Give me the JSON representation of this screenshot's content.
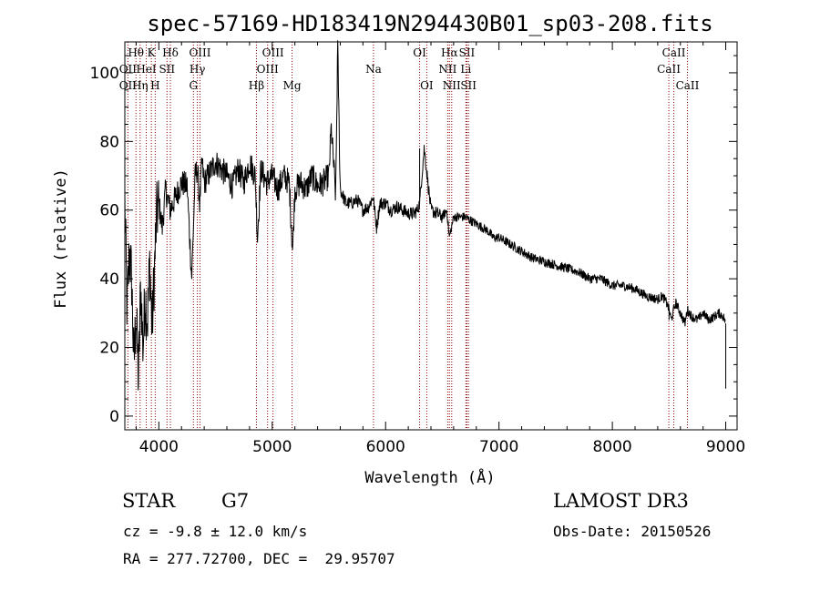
{
  "chart_data": {
    "type": "line",
    "title": "spec-57169-HD183419N294430B01_sp03-208.fits",
    "xlabel": "Wavelength (Å)",
    "ylabel": "Flux (relative)",
    "xlim": [
      3700,
      9100
    ],
    "ylim": [
      -4,
      109
    ],
    "x_ticks": [
      4000,
      5000,
      6000,
      7000,
      8000,
      9000
    ],
    "y_ticks": [
      0,
      20,
      40,
      60,
      80,
      100
    ],
    "grid": false,
    "series": [
      {
        "name": "flux",
        "x": [
          3700,
          3720,
          3740,
          3760,
          3780,
          3800,
          3820,
          3840,
          3860,
          3880,
          3900,
          3920,
          3940,
          3960,
          3980,
          4000,
          4030,
          4060,
          4100,
          4150,
          4200,
          4250,
          4290,
          4320,
          4340,
          4360,
          4380,
          4400,
          4450,
          4500,
          4550,
          4600,
          4650,
          4700,
          4750,
          4800,
          4850,
          4870,
          4900,
          4950,
          5000,
          5050,
          5100,
          5150,
          5180,
          5200,
          5250,
          5300,
          5350,
          5400,
          5450,
          5500,
          5520,
          5560,
          5577,
          5600,
          5650,
          5700,
          5750,
          5800,
          5850,
          5890,
          5920,
          5950,
          6000,
          6050,
          6100,
          6150,
          6200,
          6250,
          6280,
          6300,
          6340,
          6400,
          6450,
          6500,
          6540,
          6563,
          6600,
          6650,
          6700,
          6750,
          6800,
          6850,
          6900,
          6950,
          7000,
          7100,
          7200,
          7300,
          7400,
          7500,
          7600,
          7700,
          7800,
          7900,
          8000,
          8100,
          8200,
          8300,
          8400,
          8440,
          8480,
          8500,
          8520,
          8542,
          8560,
          8600,
          8640,
          8662,
          8700,
          8750,
          8800,
          8850,
          8900,
          8940,
          8980,
          9000
        ],
        "y": [
          62,
          30,
          48,
          40,
          15,
          30,
          10,
          38,
          20,
          35,
          28,
          45,
          25,
          42,
          58,
          62,
          55,
          66,
          60,
          64,
          68,
          67,
          40,
          70,
          72,
          62,
          74,
          68,
          71,
          74,
          72,
          70,
          67,
          72,
          68,
          74,
          70,
          52,
          72,
          68,
          70,
          66,
          70,
          68,
          48,
          66,
          68,
          66,
          70,
          67,
          68,
          70,
          84,
          64,
          108,
          66,
          62,
          62,
          63,
          60,
          61,
          64,
          55,
          62,
          62,
          60,
          61,
          60,
          59,
          59,
          60,
          62,
          78,
          60,
          59,
          58,
          60,
          52,
          58,
          58,
          58,
          57,
          56,
          55,
          54,
          52,
          52,
          50,
          48,
          46,
          45,
          44,
          43,
          42,
          40,
          40,
          38,
          38,
          37,
          35,
          34,
          35,
          33,
          31,
          28,
          31,
          33,
          30,
          27,
          31,
          29,
          28,
          30,
          28,
          29,
          30,
          29,
          27
        ]
      }
    ],
    "line_annotations": [
      {
        "label": "Hθ",
        "x": 3798,
        "row": 0
      },
      {
        "label": "OII",
        "x": 3727,
        "row": 1
      },
      {
        "label": "OII",
        "x": 3727,
        "row": 2
      },
      {
        "label": "K",
        "x": 3934,
        "row": 0
      },
      {
        "label": "HeI",
        "x": 3889,
        "row": 1
      },
      {
        "label": "Hη",
        "x": 3835,
        "row": 2
      },
      {
        "label": "Hδ",
        "x": 4102,
        "row": 0
      },
      {
        "label": "SII",
        "x": 4072,
        "row": 1
      },
      {
        "label": "H",
        "x": 3968,
        "row": 2
      },
      {
        "label": "OIII",
        "x": 4363,
        "row": 0
      },
      {
        "label": "Hγ",
        "x": 4340,
        "row": 1
      },
      {
        "label": "G",
        "x": 4305,
        "row": 2
      },
      {
        "label": "OIII",
        "x": 5007,
        "row": 0
      },
      {
        "label": "OIII",
        "x": 4959,
        "row": 1
      },
      {
        "label": "Hβ",
        "x": 4861,
        "row": 2
      },
      {
        "label": "Mg",
        "x": 5175,
        "row": 2
      },
      {
        "label": "Na",
        "x": 5893,
        "row": 1
      },
      {
        "label": "OI",
        "x": 6300,
        "row": 0
      },
      {
        "label": "OI",
        "x": 6363,
        "row": 2
      },
      {
        "label": "Hα",
        "x": 6563,
        "row": 0
      },
      {
        "label": "SII",
        "x": 6717,
        "row": 0
      },
      {
        "label": "NII",
        "x": 6548,
        "row": 1
      },
      {
        "label": "Li",
        "x": 6708,
        "row": 1
      },
      {
        "label": "NII",
        "x": 6583,
        "row": 2
      },
      {
        "label": "SII",
        "x": 6731,
        "row": 2
      },
      {
        "label": "CaII",
        "x": 8542,
        "row": 0
      },
      {
        "label": "CaII",
        "x": 8498,
        "row": 1
      },
      {
        "label": "CaII",
        "x": 8662,
        "row": 2
      }
    ],
    "line_color": "#8b0000"
  },
  "info": {
    "object_class": "STAR",
    "subclass": "G7",
    "survey": "LAMOST DR3",
    "cz": "cz = -9.8 ± 12.0 km/s",
    "obs_date": "Obs-Date: 20150526",
    "coords": "RA = 277.72700, DEC =  29.95707"
  }
}
